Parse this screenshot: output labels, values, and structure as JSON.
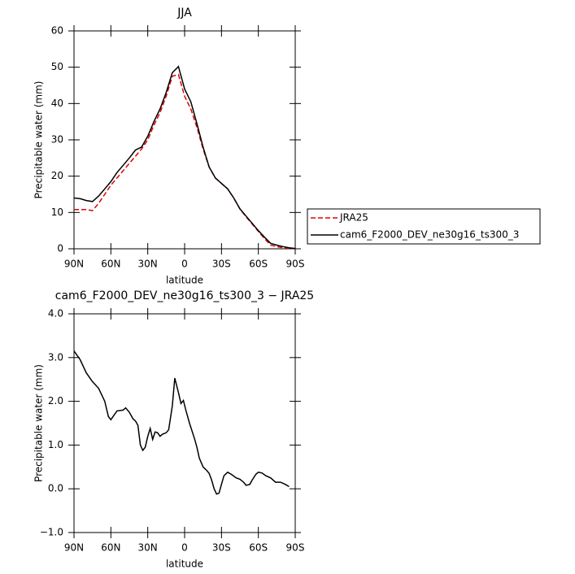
{
  "chart_data": [
    {
      "type": "line",
      "title": "JJA",
      "x_label": "latitude",
      "y_label": "Precipitable water (mm)",
      "x": [
        90,
        85,
        80,
        75,
        70,
        65,
        60,
        55,
        50,
        45,
        40,
        35,
        30,
        25,
        20,
        15,
        10,
        5,
        0,
        -5,
        -10,
        -15,
        -20,
        -25,
        -30,
        -35,
        -40,
        -45,
        -50,
        -55,
        -60,
        -65,
        -70,
        -75,
        -80,
        -85,
        -90
      ],
      "series": [
        {
          "name": "JRA25",
          "color": "#e00000",
          "dashed": true,
          "values": [
            10.8,
            10.8,
            10.8,
            10.5,
            12.5,
            15,
            17.5,
            19.5,
            21.5,
            23.5,
            25.5,
            27.5,
            30,
            34,
            37.5,
            42,
            47.5,
            48,
            42,
            38.5,
            33.5,
            27.5,
            22.5,
            19.5,
            18,
            16.5,
            14,
            11,
            8.8,
            6.8,
            4.8,
            2.8,
            1,
            0.6,
            0.3,
            0.1,
            0
          ]
        },
        {
          "name": "cam6_F2000_DEV_ne30g16_ts300_3",
          "color": "#000000",
          "dashed": false,
          "values": [
            14,
            13.8,
            13.3,
            13,
            14.5,
            16.5,
            18.5,
            21,
            23,
            25,
            27.2,
            28,
            31,
            35,
            38.5,
            43,
            48.5,
            50.2,
            44,
            40.5,
            34.5,
            28,
            22.5,
            19.5,
            18,
            16.5,
            14,
            11,
            9,
            7,
            5,
            3.2,
            1.5,
            1,
            0.6,
            0.3,
            0.1
          ]
        }
      ],
      "xlim": [
        90,
        -90
      ],
      "xticks": [
        {
          "value": 90,
          "label": "90N"
        },
        {
          "value": 60,
          "label": "60N"
        },
        {
          "value": 30,
          "label": "30N"
        },
        0,
        {
          "value": -30,
          "label": "30S"
        },
        {
          "value": -60,
          "label": "60S"
        },
        {
          "value": -90,
          "label": "90S"
        }
      ],
      "ylim": [
        0,
        60
      ],
      "yticks": [
        0,
        10,
        20,
        30,
        40,
        50,
        60
      ],
      "legend": "right"
    },
    {
      "type": "line",
      "title": "cam6_F2000_DEV_ne30g16_ts300_3 − JRA25",
      "x_label": "latitude",
      "y_label": "Precipitable water (mm)",
      "x": [
        90,
        85,
        80,
        75,
        70,
        65,
        62,
        60,
        55,
        50,
        48,
        45,
        42,
        40,
        38,
        36,
        34,
        32,
        30,
        28,
        26,
        24,
        22,
        20,
        18,
        15,
        13,
        10,
        8,
        5,
        3,
        1,
        -1,
        -4,
        -8,
        -10,
        -12,
        -15,
        -18,
        -20,
        -22,
        -24,
        -26,
        -28,
        -30,
        -32,
        -35,
        -38,
        -42,
        -45,
        -48,
        -50,
        -53,
        -55,
        -58,
        -60,
        -63,
        -66,
        -70,
        -74,
        -78,
        -82,
        -85
      ],
      "series": [
        {
          "name": null,
          "color": "#000000",
          "dashed": false,
          "values": [
            3.15,
            2.95,
            2.65,
            2.45,
            2.3,
            2.0,
            1.65,
            1.58,
            1.78,
            1.8,
            1.85,
            1.75,
            1.6,
            1.55,
            1.45,
            1.0,
            0.88,
            0.95,
            1.2,
            1.38,
            1.13,
            1.3,
            1.28,
            1.2,
            1.25,
            1.28,
            1.35,
            1.9,
            2.53,
            2.2,
            1.95,
            2.02,
            1.8,
            1.5,
            1.15,
            0.95,
            0.7,
            0.5,
            0.42,
            0.35,
            0.2,
            0.0,
            -0.12,
            -0.1,
            0.1,
            0.3,
            0.38,
            0.33,
            0.25,
            0.22,
            0.15,
            0.08,
            0.1,
            0.2,
            0.33,
            0.38,
            0.36,
            0.3,
            0.25,
            0.15,
            0.15,
            0.1,
            0.05
          ]
        }
      ],
      "xlim": [
        90,
        -90
      ],
      "xticks": [
        {
          "value": 90,
          "label": "90N"
        },
        {
          "value": 60,
          "label": "60N"
        },
        {
          "value": 30,
          "label": "30N"
        },
        0,
        {
          "value": -30,
          "label": "30S"
        },
        {
          "value": -60,
          "label": "60S"
        },
        {
          "value": -90,
          "label": "90S"
        }
      ],
      "ylim": [
        -1,
        4
      ],
      "yticks": [
        {
          "value": -1,
          "label": "−1.0"
        },
        {
          "value": 0,
          "label": "0.0"
        },
        {
          "value": 1,
          "label": "1.0"
        },
        {
          "value": 2,
          "label": "2.0"
        },
        {
          "value": 3,
          "label": "3.0"
        },
        {
          "value": 4,
          "label": "4.0"
        }
      ]
    }
  ]
}
